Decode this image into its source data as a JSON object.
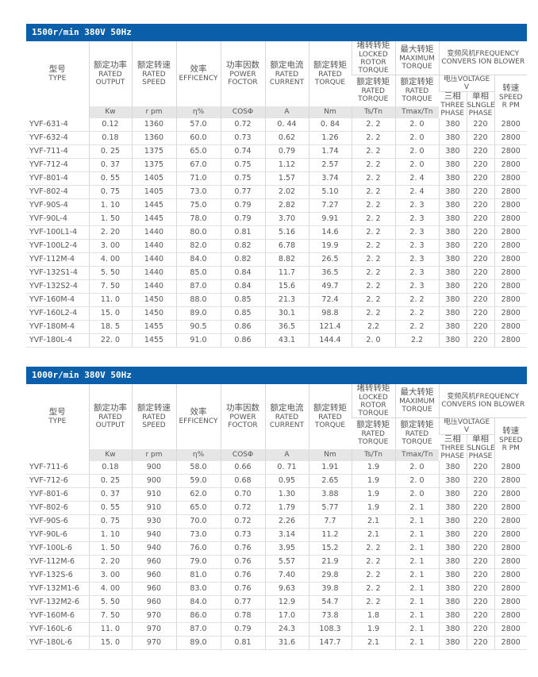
{
  "header": {
    "type": [
      "型号",
      "TYPE"
    ],
    "output": [
      "额定功率",
      "RATED",
      "OUTPUT"
    ],
    "speed": [
      "额定转速",
      "RATED",
      "SPEED"
    ],
    "eff": [
      "效率",
      "EFFICENCY"
    ],
    "pf": [
      "功率因数",
      "POWER",
      "FOCTOR"
    ],
    "current": [
      "额定电流",
      "RATED",
      "CURRENT"
    ],
    "torque": [
      "额定转矩",
      "RATED",
      "TORQUE"
    ],
    "locked": [
      "堵转转矩",
      "LOCKED",
      "ROTOR",
      "TORQUE"
    ],
    "max": [
      "最大转矩",
      "MAXIMUM",
      "TORQUE"
    ],
    "rt": [
      "额定转矩",
      "RATED",
      "TORQUE"
    ],
    "blower": [
      "变频风机FREQUENCY",
      "CONVERS ION BLOWER"
    ],
    "voltage": [
      "电压VOLTAGE",
      "V"
    ],
    "three": [
      "三相",
      "THREE",
      "PHASE"
    ],
    "single": [
      "单相",
      "SLNGLE",
      "PHASE"
    ],
    "rpm": [
      "转速",
      "SPEED",
      "R PM"
    ],
    "units": [
      "Kw",
      "r pm",
      "η%",
      "COSΦ",
      "A",
      "Nm",
      "Ts/Tn",
      "Tmax/Tn"
    ]
  },
  "tables": [
    {
      "title": "1500r/min   380V  50Hz",
      "rows": [
        [
          "YVF-631-4",
          "0.12",
          "1360",
          "57.0",
          "0.72",
          "0. 44",
          "0. 84",
          "2. 2",
          "2. 0",
          "380",
          "220",
          "2800"
        ],
        [
          "YVF-632-4",
          "0.18",
          "1360",
          "60.0",
          "0.73",
          "0.62",
          "1.26",
          "2. 2",
          "2. 0",
          "380",
          "220",
          "2800"
        ],
        [
          "YVF-711-4",
          "0. 25",
          "1375",
          "65.0",
          "0.74",
          "0.79",
          "1.74",
          "2. 2",
          "2. 0",
          "380",
          "220",
          "2800"
        ],
        [
          "YVF-712-4",
          "0. 37",
          "1375",
          "67.0",
          "0.75",
          "1.12",
          "2.57",
          "2. 2",
          "2. 0",
          "380",
          "220",
          "2800"
        ],
        [
          "YVF-801-4",
          "0. 55",
          "1405",
          "71.0",
          "0.75",
          "1.57",
          "3.74",
          "2. 2",
          "2. 4",
          "380",
          "220",
          "2800"
        ],
        [
          "YVF-802-4",
          "0. 75",
          "1405",
          "73.0",
          "0.77",
          "2.02",
          "5.10",
          "2. 2",
          "2. 4",
          "380",
          "220",
          "2800"
        ],
        [
          "YVF-90S-4",
          "1. 10",
          "1445",
          "75.0",
          "0.79",
          "2.82",
          "7.27",
          "2. 2",
          "2. 3",
          "380",
          "220",
          "2800"
        ],
        [
          "YVF-90L-4",
          "1. 50",
          "1445",
          "78.0",
          "0.79",
          "3.70",
          "9.91",
          "2. 2",
          "2. 3",
          "380",
          "220",
          "2800"
        ],
        [
          "YVF-100L1-4",
          "2. 20",
          "1440",
          "80.0",
          "0.81",
          "5.16",
          "14.6",
          "2. 2",
          "2. 3",
          "380",
          "220",
          "2800"
        ],
        [
          "YVF-100L2-4",
          "3. 00",
          "1440",
          "82.0",
          "0.82",
          "6.78",
          "19.9",
          "2. 2",
          "2. 3",
          "380",
          "220",
          "2800"
        ],
        [
          "YVF-112M-4",
          "4. 00",
          "1440",
          "84.0",
          "0.82",
          "8.82",
          "26.5",
          "2. 2",
          "2. 3",
          "380",
          "220",
          "2800"
        ],
        [
          "YVF-132S1-4",
          "5. 50",
          "1440",
          "85.0",
          "0.84",
          "11.7",
          "36.5",
          "2. 2",
          "2. 3",
          "380",
          "220",
          "2800"
        ],
        [
          "YVF-132S2-4",
          "7. 50",
          "1440",
          "87.0",
          "0.84",
          "15.6",
          "49.7",
          "2. 2",
          "2. 3",
          "380",
          "220",
          "2800"
        ],
        [
          "YVF-160M-4",
          "11. 0",
          "1450",
          "88.0",
          "0.85",
          "21.3",
          "72.4",
          "2. 2",
          "2. 2",
          "380",
          "220",
          "2800"
        ],
        [
          "YVF-160L2-4",
          "15. 0",
          "1450",
          "89.0",
          "0.85",
          "30.1",
          "98.8",
          "2. 2",
          "2. 2",
          "380",
          "220",
          "2800"
        ],
        [
          "YVF-180M-4",
          "18. 5",
          "1455",
          "90.5",
          "0.86",
          "36.5",
          "121.4",
          "2.2",
          "2. 2",
          "380",
          "220",
          "2800"
        ],
        [
          "YVF-180L-4",
          "22. 0",
          "1455",
          "91.0",
          "0.86",
          "43.1",
          "144.4",
          "2. 0",
          "2.2",
          "380",
          "220",
          "2800"
        ]
      ]
    },
    {
      "title": "1000r/min   380V  50Hz",
      "rows": [
        [
          "YVF-711-6",
          "0.18",
          "900",
          "58.0",
          "0.66",
          "0. 71",
          "1.91",
          "1.9",
          "2. 0",
          "380",
          "220",
          "2800"
        ],
        [
          "YVF-712-6",
          "0. 25",
          "900",
          "59.0",
          "0.68",
          "0.95",
          "2.65",
          "1.9",
          "2. 0",
          "380",
          "220",
          "2800"
        ],
        [
          "YVF-801-6",
          "0. 37",
          "910",
          "62.0",
          "0.70",
          "1.30",
          "3.88",
          "1.9",
          "2. 0",
          "380",
          "220",
          "2800"
        ],
        [
          "YVF-802-6",
          "0. 55",
          "910",
          "65.0",
          "0.72",
          "1.79",
          "5.77",
          "1.9",
          "2. 1",
          "380",
          "220",
          "2800"
        ],
        [
          "YVF-90S-6",
          "0. 75",
          "930",
          "70.0",
          "0.72",
          "2.26",
          "7.7",
          "2.1",
          "2. 1",
          "380",
          "220",
          "2800"
        ],
        [
          "YVF-90L-6",
          "1. 10",
          "940",
          "73.0",
          "0.73",
          "3.14",
          "11.2",
          "2.1",
          "2. 1",
          "380",
          "220",
          "2800"
        ],
        [
          "YVF-100L-6",
          "1. 50",
          "940",
          "76.0",
          "0.76",
          "3.95",
          "15.2",
          "2. 2",
          "2. 1",
          "380",
          "220",
          "2800"
        ],
        [
          "YVF-112M-6",
          "2. 20",
          "960",
          "79.0",
          "0.76",
          "5.57",
          "21.9",
          "2. 2",
          "2. 1",
          "380",
          "220",
          "2800"
        ],
        [
          "YVF-132S-6",
          "3. 00",
          "960",
          "81.0",
          "0.76",
          "7.40",
          "29.8",
          "2. 2",
          "2. 1",
          "380",
          "220",
          "2800"
        ],
        [
          "YVF-132M1-6",
          "4. 00",
          "960",
          "83.0",
          "0.76",
          "9.63",
          "39.8",
          "2. 2",
          "2. 1",
          "380",
          "220",
          "2800"
        ],
        [
          "YVF-132M2-6",
          "5. 50",
          "960",
          "84.0",
          "0.77",
          "12.9",
          "54.7",
          "2. 2",
          "2. 1",
          "380",
          "220",
          "2800"
        ],
        [
          "YVF-160M-6",
          "7. 50",
          "970",
          "86.0",
          "0.78",
          "17.0",
          "73.8",
          "1.8",
          "2. 1",
          "380",
          "220",
          "2800"
        ],
        [
          "YVF-160L-6",
          "11. 0",
          "970",
          "87.0",
          "0.79",
          "24.3",
          "108.3",
          "1.9",
          "2. 1",
          "380",
          "220",
          "2800"
        ],
        [
          "YVF-180L-6",
          "15. 0",
          "970",
          "89.0",
          "0.81",
          "31.6",
          "147.7",
          "2.1",
          "2. 1",
          "380",
          "220",
          "2800"
        ]
      ]
    }
  ]
}
